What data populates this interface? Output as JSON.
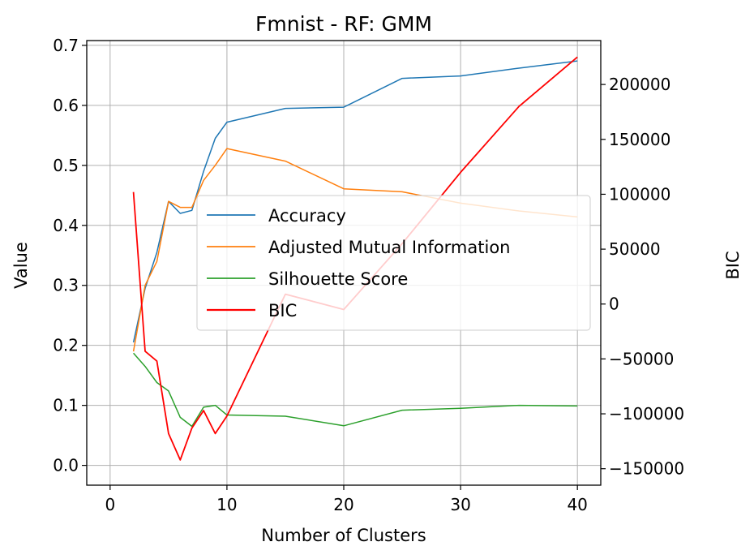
{
  "chart_data": {
    "type": "line",
    "title": "Fmnist - RF: GMM",
    "xlabel": "Number of Clusters",
    "ylabel": "Value",
    "y2label": "BIC",
    "xlim": [
      -2,
      42
    ],
    "ylim": [
      -0.033,
      0.708
    ],
    "y2lim": [
      -165000,
      240000
    ],
    "xticks": [
      0,
      10,
      20,
      30,
      40
    ],
    "yticks": [
      0.0,
      0.1,
      0.2,
      0.3,
      0.4,
      0.5,
      0.6,
      0.7
    ],
    "ytick_labels": [
      "0.0",
      "0.1",
      "0.2",
      "0.3",
      "0.4",
      "0.5",
      "0.6",
      "0.7"
    ],
    "y2ticks": [
      -150000,
      -100000,
      -50000,
      0,
      50000,
      100000,
      150000,
      200000
    ],
    "y2tick_labels": [
      "−150000",
      "−100000",
      "−50000",
      "0",
      "50000",
      "100000",
      "150000",
      "200000"
    ],
    "grid": true,
    "legend_position": "center-right",
    "x": [
      2,
      3,
      4,
      5,
      6,
      7,
      8,
      9,
      10,
      15,
      20,
      25,
      30,
      35,
      40
    ],
    "series": [
      {
        "name": "Accuracy",
        "axis": "left",
        "color": "#1f77b4",
        "values": [
          0.205,
          0.295,
          0.355,
          0.44,
          0.42,
          0.425,
          0.49,
          0.545,
          0.572,
          0.595,
          0.597,
          0.645,
          0.649,
          0.662,
          0.674
        ]
      },
      {
        "name": "Adjusted Mutual Information",
        "axis": "left",
        "color": "#ff7f0e",
        "values": [
          0.19,
          0.3,
          0.34,
          0.44,
          0.43,
          0.43,
          0.475,
          0.5,
          0.528,
          0.507,
          0.461,
          0.456,
          0.437,
          0.424,
          0.414
        ]
      },
      {
        "name": "Silhouette Score",
        "axis": "left",
        "color": "#2ca02c",
        "values": [
          0.187,
          0.165,
          0.138,
          0.124,
          0.08,
          0.065,
          0.097,
          0.1,
          0.084,
          0.082,
          0.066,
          0.092,
          0.095,
          0.1,
          0.099
        ]
      },
      {
        "name": "BIC",
        "axis": "right",
        "color": "#ff0000",
        "values": [
          102000,
          -43000,
          -52000,
          -118000,
          -142000,
          -113000,
          -97000,
          -118000,
          -102000,
          9000,
          -5000,
          55000,
          120000,
          180000,
          225000
        ]
      }
    ]
  }
}
